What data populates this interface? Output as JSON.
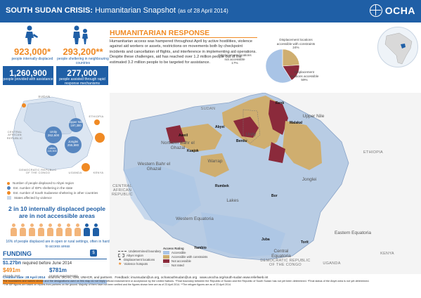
{
  "header": {
    "title_bold": "SOUTH SUDAN CRISIS:",
    "title_rest": " Humanitarian Snapshot ",
    "date": "(as of 28 April 2014)",
    "logo_text": "OCHA"
  },
  "stats": {
    "idp_number": "923,000*",
    "idp_label": "people internally displaced",
    "refugee_number": "293,200**",
    "refugee_label": "people sheltering in neighbouring countries",
    "assisted_number": "1,260,900",
    "assisted_label": "people provided with assistance",
    "rapid_number": "277,000",
    "rapid_label": "people assisted through rapid response mechanisms"
  },
  "small_map": {
    "sudan_label": "SUDAN",
    "car_label": "CENTRAL AFRICAN REPUBLIC",
    "drc_label": "DEMOCRATIC REPUBLIC OF THE CONGO",
    "uganda_label": "UGANDA",
    "ethiopia_label": "ETHIOPIA",
    "kenya_label": "KENYA",
    "bubbles": [
      {
        "name": "Unity",
        "value": "262,600"
      },
      {
        "name": "Upper Nile",
        "value": "197,300"
      },
      {
        "name": "Jonglei",
        "value": "255,980"
      },
      {
        "name": "Lakes",
        "value": "115,300"
      }
    ],
    "legend": [
      "Number of people displaced to Abyei region",
      "Est. number of IDPs sheltering in the state",
      "Est. number of South Sudanese sheltering in other countries",
      "States affected by violence"
    ]
  },
  "access": {
    "headline": "2 in 10 internally displaced people are in not accessible areas",
    "note": "16% of people displaced are in open or rural settings, often in hard to access areas",
    "accessible_count": 8,
    "total_count": 10
  },
  "funding": {
    "title": "FUNDING",
    "required": "$1.27bn",
    "required_label": "required before June 2014",
    "met_value": "$491m",
    "met_label": "Already met",
    "unmet_value": "$781m",
    "unmet_label": "Unmet requirements",
    "met_fraction": 0.387
  },
  "response": {
    "title": "HUMANITARIAN RESPONSE",
    "text": "Humanitarian access was hampered throughout April by active hostilities, violence against aid workers or assets, restrictions on movements both by checkpoint incidents and cancellation of flights, and interference in implementing aid operations. Despite these challenges, aid has reached over 1.2 million people out of the estimated 3.2 million people to be targeted for assistance."
  },
  "pie": {
    "slices": [
      {
        "label": "Displacement locations accessible with constraints",
        "pct": "24%",
        "value": 24,
        "color": "#cfae6f"
      },
      {
        "label": "Displacement locations not accessible",
        "pct": "17%",
        "value": 17,
        "color": "#8b2a3b"
      },
      {
        "label": "Displacement locations accessible",
        "pct": "59%",
        "value": 59,
        "color": "#a9c4e6"
      }
    ]
  },
  "main_map": {
    "regions": [
      "Upper Nile",
      "Northern Bahr el Ghazal",
      "Western Bahr el Ghazal",
      "Warrap",
      "Unity",
      "Lakes",
      "Jonglei",
      "Western Equatoria",
      "Central Equatoria",
      "Eastern Equatoria"
    ],
    "countries": [
      "SUDAN",
      "ETHIOPIA",
      "CENTRAL AFRICAN REPUBLIC",
      "DEMOCRATIC REPUBLIC OF THE CONGO",
      "UGANDA",
      "KENYA"
    ],
    "towns": [
      "Renk",
      "Malakal",
      "Aweil",
      "Kuajok",
      "Bentiu",
      "Rumbek",
      "Bor",
      "Juba",
      "Yambio",
      "Torit",
      "Abyei"
    ]
  },
  "map_legend": {
    "undetermined": "Undetermined boundary",
    "abyei": "Abyei region",
    "idp_locations": "Displacement locations",
    "hotspots": "Violence hotspots",
    "access_heading": "Access Rating",
    "accessible": "Accessible",
    "constraints": "Accessible with constraints",
    "not_accessible": "Not accessible",
    "not_rated": "Not rated"
  },
  "footer": {
    "creation": "Creation date: 28 April 2014",
    "sources": "Sources: OCHA, IOM, UNHCR, and partners",
    "feedback": "Feedback: imunsudan@un.org, ochasouthsudan@un.org",
    "web": "www.unocha.org/south-sudan   www.reliefweb.int",
    "disclaimer": "The boundaries and names shown and the designations used on this map do not imply official endorsement or acceptance by the United Nations. *Final boundary between the Republic of Sudan and the Republic of South Sudan has not yet been determined. *Final status of the Abyei area is not yet determined.",
    "note": "*The IDP figures are based on reports from partners on the ground. Majority of them have not been verified and the figures shown here are as of 23 April 2014. **The refugee figures are as of 23 April 2014."
  },
  "colors": {
    "brand": "#1f5fa6",
    "accent": "#f08a24",
    "accessible": "#a9c4e6",
    "constraints": "#cfae6f",
    "not_accessible": "#8b2a3b"
  }
}
